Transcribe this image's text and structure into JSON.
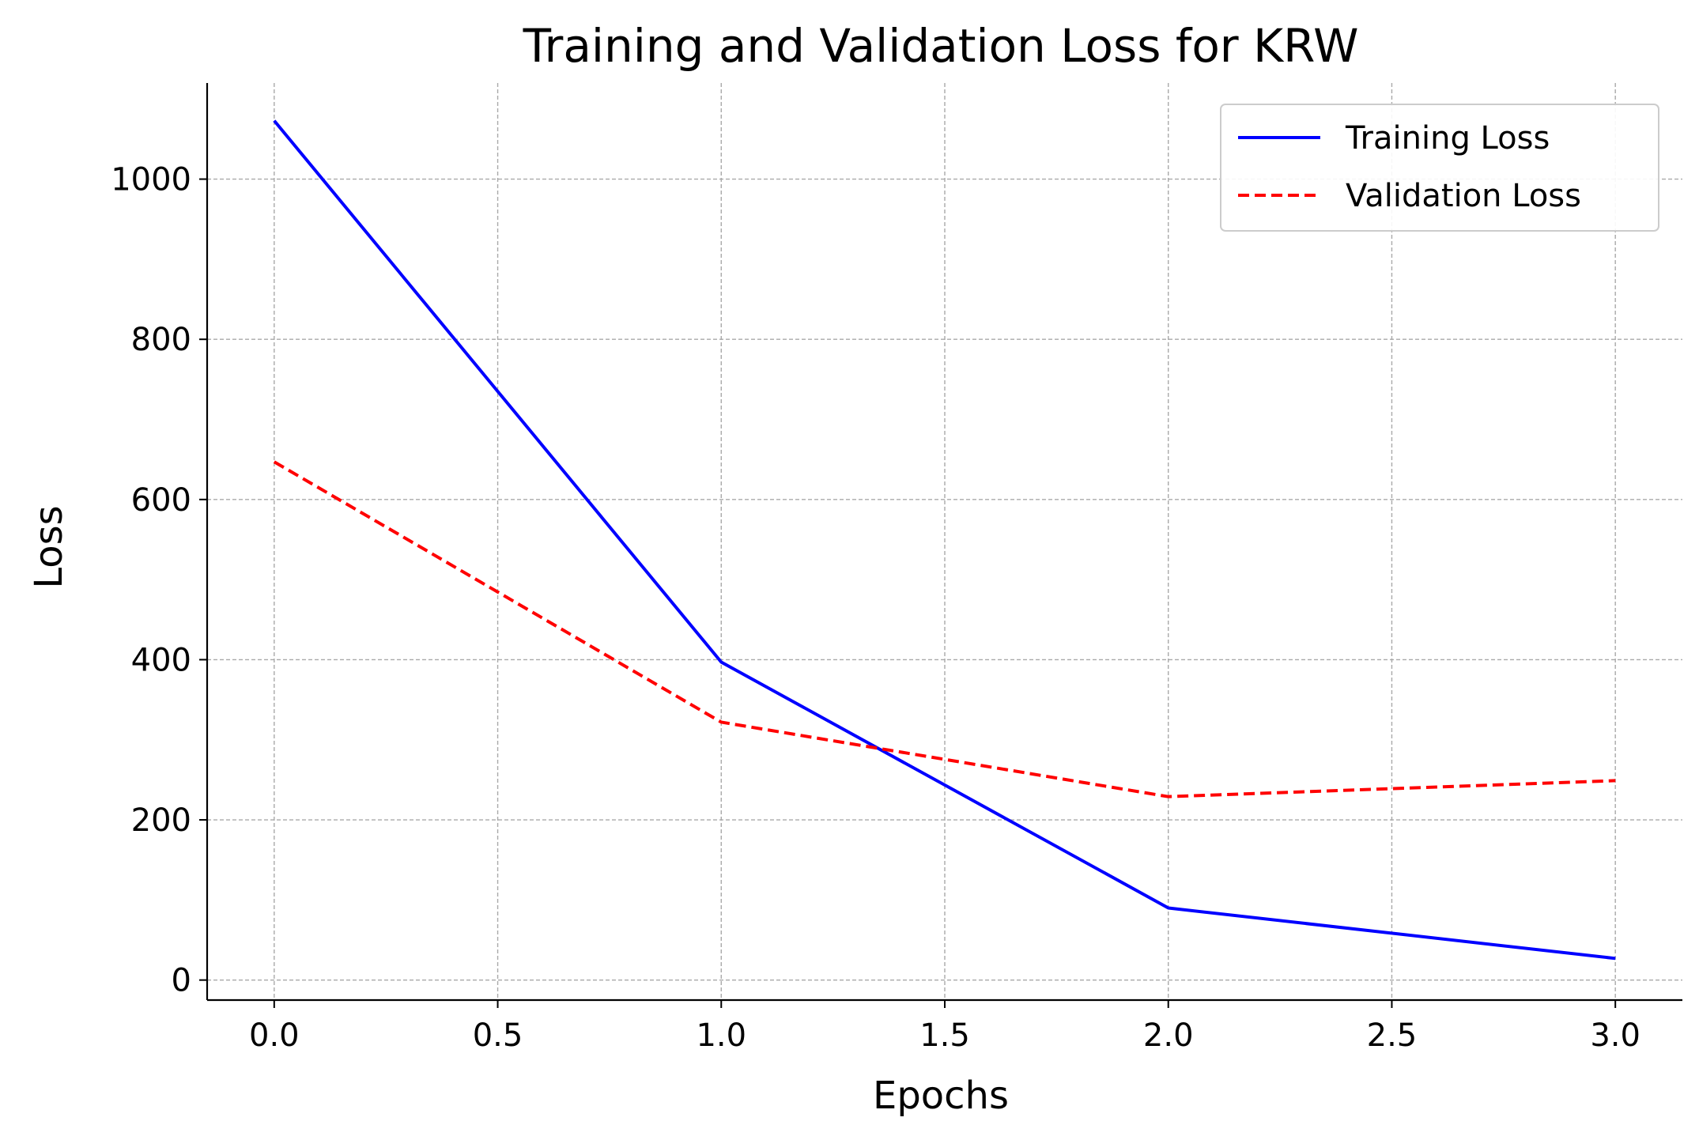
{
  "chart_data": {
    "type": "line",
    "title": "Training and Validation Loss for KRW",
    "xlabel": "Epochs",
    "ylabel": "Loss",
    "x": [
      0,
      1,
      2,
      3
    ],
    "xlim": [
      -0.15,
      3.15
    ],
    "ylim": [
      -25,
      1120
    ],
    "xticks": [
      0.0,
      0.5,
      1.0,
      1.5,
      2.0,
      2.5,
      3.0
    ],
    "xtick_labels": [
      "0.0",
      "0.5",
      "1.0",
      "1.5",
      "2.0",
      "2.5",
      "3.0"
    ],
    "yticks": [
      0,
      200,
      400,
      600,
      800,
      1000
    ],
    "ytick_labels": [
      "0",
      "200",
      "400",
      "600",
      "800",
      "1000"
    ],
    "grid": true,
    "legend_position": "top-right",
    "series": [
      {
        "name": "Training Loss",
        "values": [
          1073,
          397,
          90,
          27
        ],
        "color": "#0000ff",
        "style": "solid"
      },
      {
        "name": "Validation Loss",
        "values": [
          647,
          322,
          229,
          249
        ],
        "color": "#ff0000",
        "style": "dashed"
      }
    ]
  }
}
